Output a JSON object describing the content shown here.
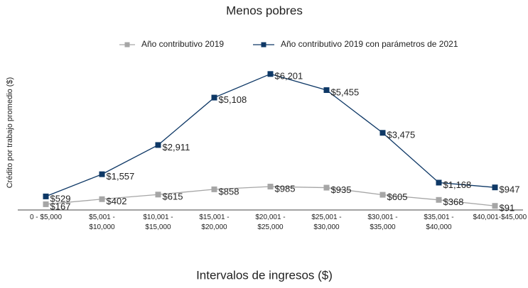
{
  "chart_data": {
    "type": "line",
    "title": "Menos pobres",
    "x_label": "Intervalos de ingresos ($)",
    "y_label": "Crédito por trabajo promedio ($)",
    "categories": [
      "0 - $5,000",
      "$5,001 - $10,000",
      "$10,001 - $15,000",
      "$15,001 - $20,000",
      "$20,001 - $25,000",
      "$25,001 - $30,000",
      "$30,001 - $35,000",
      "$35,001 - $40,000",
      "$40,001-$45,000"
    ],
    "series": [
      {
        "name": "Año contributivo 2019",
        "color": "#a6a6a6",
        "values": [
          167,
          402,
          615,
          858,
          985,
          935,
          605,
          368,
          91
        ],
        "value_labels": [
          "$167",
          "$402",
          "$615",
          "$858",
          "$985",
          "$935",
          "$605",
          "$368",
          "$91"
        ]
      },
      {
        "name": "Año contributivo 2019 con parámetros de 2021",
        "color": "#0e3866",
        "values": [
          529,
          1557,
          2911,
          5108,
          6201,
          5455,
          3475,
          1168,
          947
        ],
        "value_labels": [
          "$529",
          "$1,557",
          "$2,911",
          "$5,108",
          "$6,201",
          "$5,455",
          "$3,475",
          "$1,168",
          "$947"
        ]
      }
    ],
    "ylim": [
      0,
      7000
    ],
    "legend": "top"
  }
}
